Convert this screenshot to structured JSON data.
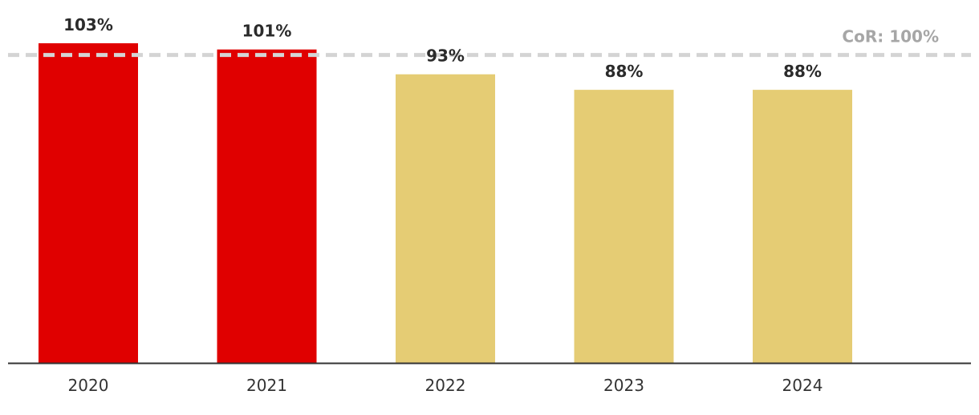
{
  "chart_data": {
    "type": "bar",
    "categories": [
      "2020",
      "2021",
      "2022",
      "2023",
      "2024"
    ],
    "values": [
      103,
      101,
      93,
      88,
      88
    ],
    "value_labels": [
      "103%",
      "101%",
      "93%",
      "88%",
      "88%"
    ],
    "bar_colors": [
      "#e00000",
      "#e00000",
      "#e5cc74",
      "#e5cc74",
      "#e5cc74"
    ],
    "title": "",
    "xlabel": "",
    "ylabel": "",
    "ylim": [
      0,
      103
    ],
    "grid": false,
    "reference_line": {
      "value": 100,
      "label": "CoR: 100%",
      "color": "#d4d4d4",
      "label_color": "#a6a6a6",
      "style": "dashed"
    },
    "axis_color": "#333333"
  }
}
